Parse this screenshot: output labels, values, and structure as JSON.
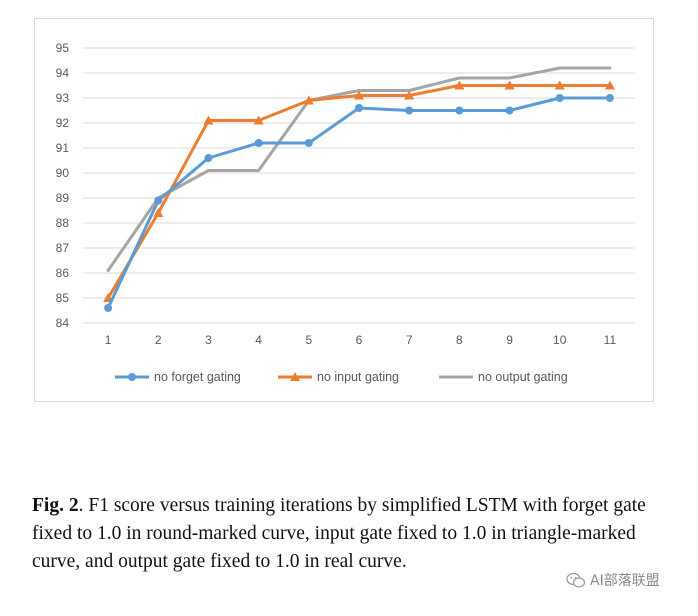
{
  "chart_data": {
    "type": "line",
    "title": "",
    "xlabel": "",
    "ylabel": "",
    "categories": [
      "1",
      "2",
      "3",
      "4",
      "5",
      "6",
      "7",
      "8",
      "9",
      "10",
      "11"
    ],
    "ylim": [
      84,
      95
    ],
    "yticks": [
      84,
      85,
      86,
      87,
      88,
      89,
      90,
      91,
      92,
      93,
      94,
      95
    ],
    "grid": true,
    "legend": "bottom",
    "series": [
      {
        "name": "no forget gating",
        "color": "#5B9BD5",
        "marker": "circle",
        "values": [
          84.6,
          88.9,
          90.6,
          91.2,
          91.2,
          92.6,
          92.5,
          92.5,
          92.5,
          93.0,
          93.0
        ]
      },
      {
        "name": "no input gating",
        "color": "#ED7D31",
        "marker": "triangle",
        "values": [
          85.0,
          88.4,
          92.1,
          92.1,
          92.9,
          93.1,
          93.1,
          93.5,
          93.5,
          93.5,
          93.5
        ]
      },
      {
        "name": "no output gating",
        "color": "#A5A5A5",
        "marker": "none",
        "values": [
          86.1,
          89.0,
          90.1,
          90.1,
          92.9,
          93.3,
          93.3,
          93.8,
          93.8,
          94.2,
          94.2
        ]
      }
    ]
  },
  "caption": {
    "label": "Fig. 2",
    "text": ". F1 score versus training iterations by simplified LSTM with forget gate fixed to 1.0 in round-marked curve, input gate fixed to 1.0 in triangle-marked curve, and output gate fixed to 1.0 in real curve."
  },
  "watermark": {
    "text": "AI部落联盟",
    "icon": "wechat-icon"
  }
}
